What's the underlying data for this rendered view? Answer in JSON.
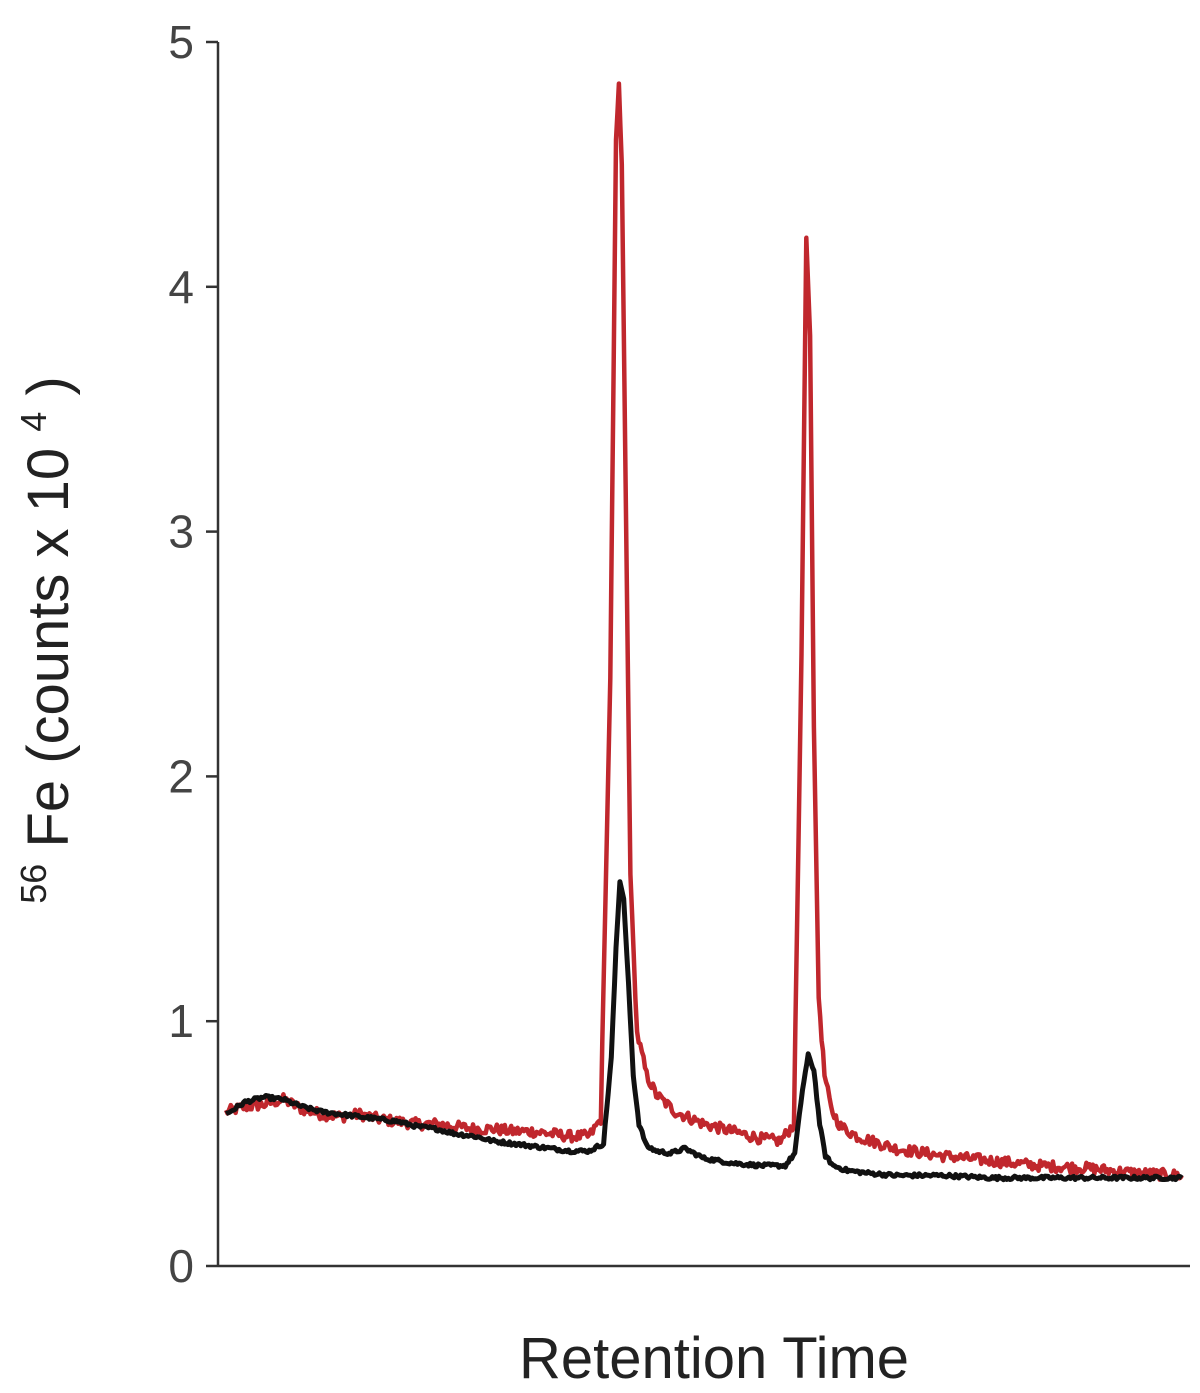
{
  "chart_data": {
    "type": "line",
    "title": "",
    "xlabel": "Retention Time",
    "ylabel": {
      "prefix_superscript": "56",
      "main": "Fe (counts x 10",
      "exponent": "4",
      "suffix": ")"
    },
    "ylim": [
      0,
      5
    ],
    "xlim": [
      0,
      100
    ],
    "yticks": [
      "0",
      "1",
      "2",
      "3",
      "4",
      "5"
    ],
    "xticks": [],
    "grid": false,
    "legend": "none",
    "series": [
      {
        "color": "#c0272d",
        "x": [
          0,
          2,
          4,
          6,
          8,
          10,
          12,
          14,
          16,
          18,
          20,
          22,
          24,
          26,
          28,
          30,
          32,
          34,
          36,
          38,
          39.2,
          40.2,
          40.8,
          41.1,
          41.4,
          41.8,
          42.3,
          43,
          44,
          45,
          47,
          50,
          53,
          56,
          58,
          59.4,
          60.2,
          60.7,
          61.1,
          61.5,
          62,
          62.6,
          63.3,
          64.3,
          66,
          70,
          75,
          80,
          85,
          90,
          95,
          100
        ],
        "y": [
          0.63,
          0.65,
          0.66,
          0.68,
          0.64,
          0.62,
          0.61,
          0.62,
          0.6,
          0.59,
          0.58,
          0.58,
          0.57,
          0.56,
          0.56,
          0.55,
          0.55,
          0.54,
          0.53,
          0.53,
          0.6,
          2.4,
          4.6,
          4.83,
          4.5,
          3.2,
          1.6,
          0.95,
          0.78,
          0.7,
          0.63,
          0.58,
          0.55,
          0.52,
          0.51,
          0.58,
          2.5,
          4.2,
          3.8,
          2.2,
          1.1,
          0.78,
          0.64,
          0.57,
          0.53,
          0.48,
          0.45,
          0.43,
          0.41,
          0.4,
          0.38,
          0.37
        ]
      },
      {
        "color": "#111111",
        "x": [
          0,
          2,
          4,
          6,
          8,
          10,
          12,
          14,
          16,
          18,
          20,
          22,
          24,
          26,
          28,
          30,
          32,
          34,
          36,
          38,
          39.5,
          40.3,
          40.8,
          41.2,
          41.6,
          42.1,
          42.6,
          43.2,
          44,
          45,
          46.5,
          48,
          50,
          53,
          56,
          58.5,
          59.5,
          60.3,
          60.9,
          61.5,
          62.1,
          62.7,
          63.5,
          65,
          67,
          70,
          75,
          80,
          85,
          90,
          95,
          100
        ],
        "y": [
          0.62,
          0.67,
          0.69,
          0.68,
          0.65,
          0.63,
          0.62,
          0.61,
          0.6,
          0.59,
          0.57,
          0.56,
          0.54,
          0.53,
          0.51,
          0.5,
          0.49,
          0.48,
          0.47,
          0.47,
          0.5,
          0.85,
          1.3,
          1.57,
          1.5,
          1.15,
          0.78,
          0.58,
          0.49,
          0.47,
          0.46,
          0.48,
          0.44,
          0.42,
          0.41,
          0.41,
          0.46,
          0.72,
          0.86,
          0.8,
          0.58,
          0.45,
          0.41,
          0.39,
          0.38,
          0.37,
          0.37,
          0.36,
          0.36,
          0.36,
          0.36,
          0.36
        ]
      }
    ]
  },
  "colors": {
    "axis": "#333333",
    "tick_text": "#444444",
    "label_text": "#222222"
  }
}
